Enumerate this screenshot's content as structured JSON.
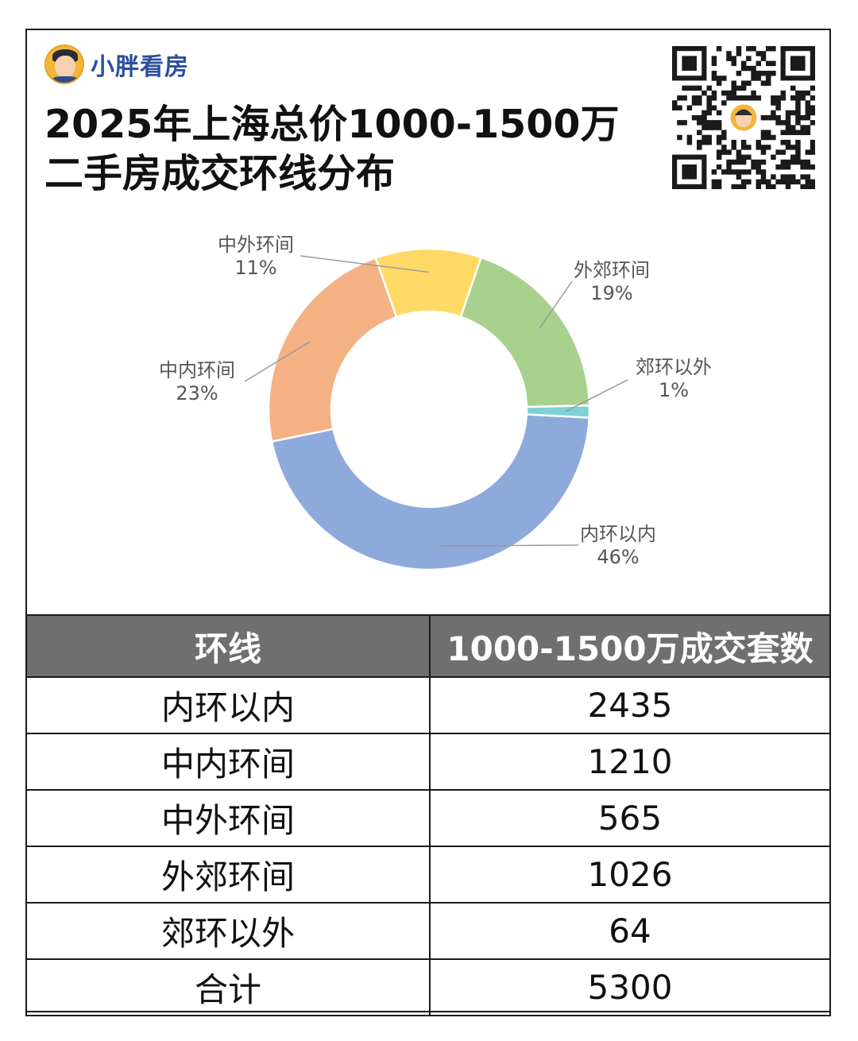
{
  "brand": {
    "name": "小胖看房"
  },
  "title": {
    "line1": "2025年上海总价1000-1500万",
    "line2": "二手房成交环线分布"
  },
  "icons": {
    "avatar": "cartoon-avatar-icon",
    "qr": "qr-code-icon"
  },
  "colors": {
    "内环以内": "#8eaadb",
    "中内环间": "#f4b183",
    "中外环间": "#ffd966",
    "外郊环间": "#a9d18e",
    "郊环以外": "#7fd1d8"
  },
  "chart_data": {
    "type": "pie",
    "donut": true,
    "title": "",
    "slices": [
      {
        "label": "内环以内",
        "value": 2435,
        "percent": "46%"
      },
      {
        "label": "中内环间",
        "value": 1210,
        "percent": "23%"
      },
      {
        "label": "中外环间",
        "value": 565,
        "percent": "11%"
      },
      {
        "label": "外郊环间",
        "value": 1026,
        "percent": "19%"
      },
      {
        "label": "郊环以外",
        "value": 64,
        "percent": "1%"
      }
    ]
  },
  "table": {
    "headers": [
      "环线",
      "1000-1500万成交套数"
    ],
    "rows": [
      [
        "内环以内",
        "2435"
      ],
      [
        "中内环间",
        "1210"
      ],
      [
        "中外环间",
        "565"
      ],
      [
        "外郊环间",
        "1026"
      ],
      [
        "郊环以外",
        "64"
      ],
      [
        "合计",
        "5300"
      ]
    ]
  }
}
